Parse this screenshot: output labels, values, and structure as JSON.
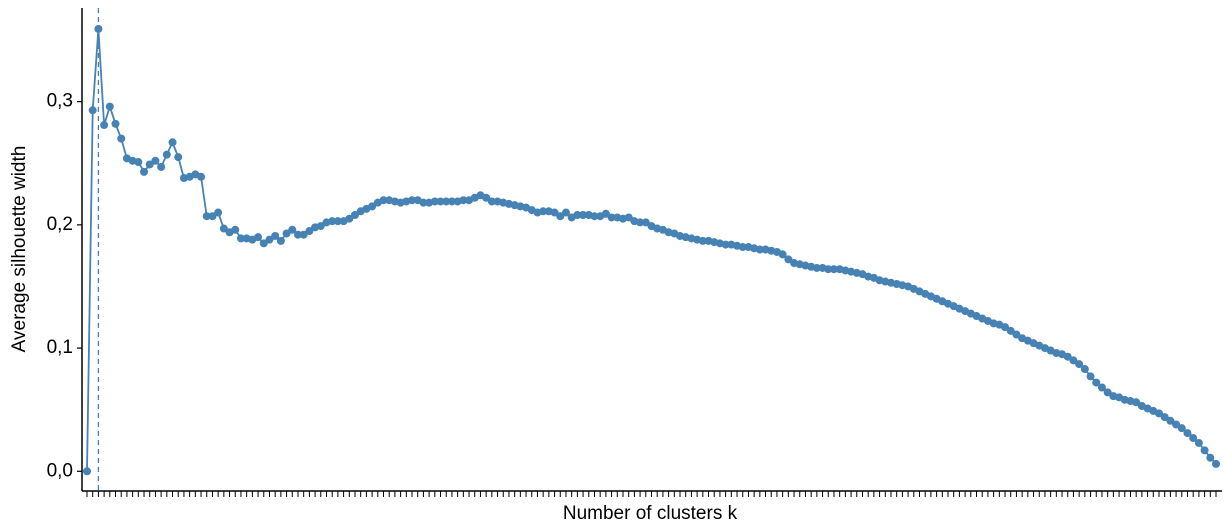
{
  "chart_data": {
    "type": "line",
    "x_label": "Number of clusters k",
    "y_label": "Average silhouette width",
    "categories": [
      null,
      null,
      null,
      null,
      null,
      null,
      null,
      null,
      null,
      null,
      null,
      null,
      null,
      null,
      null,
      null,
      null,
      null,
      null,
      null,
      null,
      null,
      null,
      null,
      null,
      null,
      null,
      null,
      null,
      null,
      null,
      null,
      null,
      null,
      null,
      null,
      null,
      null,
      null,
      null,
      null,
      null,
      null,
      null,
      null,
      null,
      null,
      null,
      null,
      null,
      null,
      null,
      null,
      null,
      null,
      null,
      null,
      null,
      null,
      null,
      null,
      null,
      null,
      null,
      null,
      null,
      null,
      null,
      null,
      null,
      null,
      null,
      null,
      null,
      null,
      null,
      null,
      null,
      null,
      null,
      null,
      null,
      null,
      null,
      null,
      null,
      null,
      null,
      null,
      null,
      null,
      null,
      null,
      null,
      null,
      null,
      null,
      null,
      null,
      null,
      null,
      null,
      null,
      null,
      null,
      null,
      null,
      null,
      null,
      null,
      null,
      null,
      null,
      null,
      null,
      null,
      null,
      null,
      null,
      null,
      null,
      null,
      null,
      null,
      null,
      null,
      null,
      null,
      null,
      null,
      null,
      null,
      null,
      null,
      null,
      null,
      null,
      null,
      null,
      null,
      null,
      null,
      null,
      null,
      null,
      null,
      null,
      null,
      null,
      null,
      null,
      null,
      null,
      null,
      null,
      null,
      null,
      null,
      null,
      null,
      null,
      null,
      null,
      null,
      null,
      null,
      null,
      null,
      null,
      null,
      null,
      null,
      null,
      null,
      null,
      null,
      null,
      null,
      null,
      null,
      null,
      null,
      null,
      null,
      null,
      null,
      null,
      null,
      null,
      null,
      null,
      null,
      null,
      null,
      null,
      null,
      null,
      null,
      null
    ],
    "series": [
      {
        "color": "#4682b4",
        "values": [
          0,
          0.293,
          0.359,
          0.281,
          0.296,
          0.282,
          0.27,
          0.254,
          0.252,
          0.251,
          0.243,
          0.249,
          0.252,
          0.247,
          0.257,
          0.267,
          0.255,
          0.238,
          0.239,
          0.241,
          0.239,
          0.207,
          0.207,
          0.21,
          0.197,
          0.194,
          0.196,
          0.189,
          0.189,
          0.188,
          0.19,
          0.185,
          0.188,
          0.191,
          0.187,
          0.193,
          0.196,
          0.192,
          0.192,
          0.195,
          0.198,
          0.199,
          0.202,
          0.203,
          0.203,
          0.203,
          0.205,
          0.208,
          0.211,
          0.213,
          0.215,
          0.218,
          0.22,
          0.22,
          0.219,
          0.218,
          0.219,
          0.22,
          0.22,
          0.218,
          0.218,
          0.219,
          0.219,
          0.219,
          0.219,
          0.219,
          0.22,
          0.22,
          0.222,
          0.224,
          0.222,
          0.219,
          0.219,
          0.218,
          0.217,
          0.216,
          0.215,
          0.214,
          0.212,
          0.21,
          0.211,
          0.211,
          0.21,
          0.207,
          0.21,
          0.206,
          0.208,
          0.208,
          0.208,
          0.207,
          0.207,
          0.209,
          0.206,
          0.206,
          0.205,
          0.206,
          0.203,
          0.202,
          0.202,
          0.199,
          0.197,
          0.196,
          0.194,
          0.193,
          0.191,
          0.19,
          0.189,
          0.188,
          0.187,
          0.187,
          0.186,
          0.185,
          0.184,
          0.184,
          0.183,
          0.182,
          0.182,
          0.181,
          0.18,
          0.18,
          0.179,
          0.178,
          0.176,
          0.172,
          0.169,
          0.168,
          0.167,
          0.166,
          0.165,
          0.165,
          0.164,
          0.164,
          0.164,
          0.163,
          0.162,
          0.161,
          0.16,
          0.158,
          0.157,
          0.155,
          0.154,
          0.153,
          0.152,
          0.151,
          0.15,
          0.148,
          0.146,
          0.144,
          0.142,
          0.14,
          0.138,
          0.136,
          0.134,
          0.132,
          0.13,
          0.128,
          0.126,
          0.124,
          0.122,
          0.12,
          0.119,
          0.117,
          0.114,
          0.111,
          0.108,
          0.106,
          0.104,
          0.102,
          0.1,
          0.098,
          0.096,
          0.095,
          0.093,
          0.09,
          0.087,
          0.083,
          0.077,
          0.072,
          0.068,
          0.064,
          0.061,
          0.06,
          0.058,
          0.057,
          0.056,
          0.053,
          0.051,
          0.049,
          0.047,
          0.044,
          0.041,
          0.038,
          0.035,
          0.031,
          0.027,
          0.023,
          0.017,
          0.011,
          0.006
        ]
      }
    ],
    "vline": 3,
    "ylim": [
      -0.016,
      0.376
    ],
    "yticks": [
      {
        "value": 0,
        "label": "0,0"
      },
      {
        "value": 0.1,
        "label": "0,1"
      },
      {
        "value": 0.2,
        "label": "0,2"
      },
      {
        "value": 0.3,
        "label": "0,3"
      }
    ]
  }
}
